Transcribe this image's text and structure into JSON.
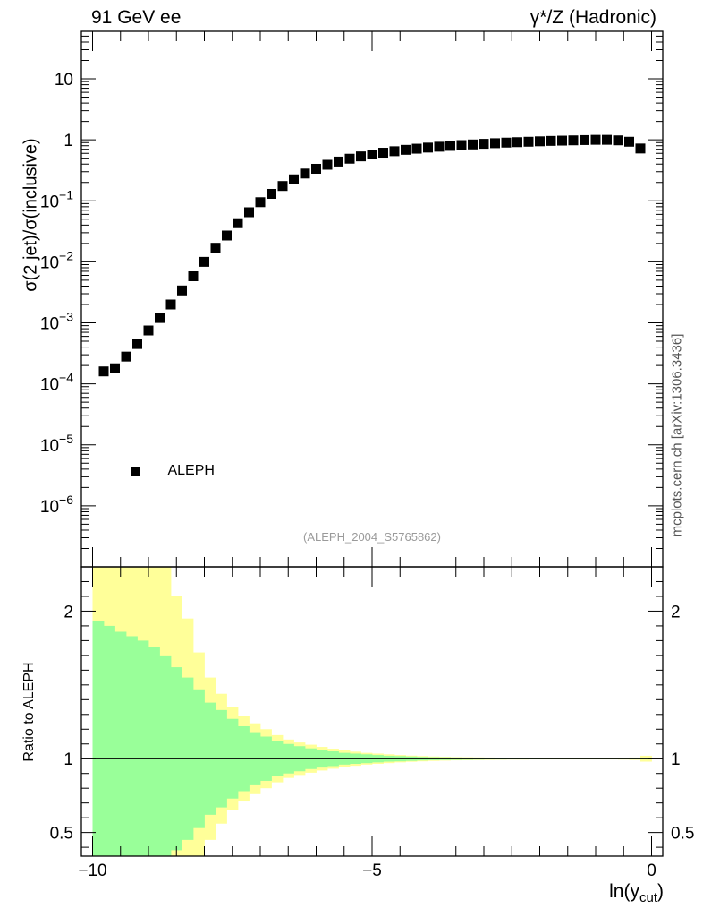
{
  "header": {
    "left_title": "91 GeV ee",
    "right_title": "γ*/Z (Hadronic)"
  },
  "side_note": "mcplots.cern.ch [arXiv:1306.3436]",
  "analysis_tag": "(ALEPH_2004_S5765862)",
  "colors": {
    "marker": "#000000",
    "band_inner": "#99ff99",
    "band_outer": "#ffff99",
    "axis": "#000000"
  },
  "chart_data": [
    {
      "type": "scatter",
      "id": "main",
      "ylabel": "σ(2 jet)/σ(inclusive)",
      "xlim": [
        -10.2,
        0.2
      ],
      "ylim": [
        1e-07,
        60
      ],
      "yscale": "log",
      "yticks": [
        {
          "value": 1e-06,
          "mant": "10",
          "exp": "−6"
        },
        {
          "value": 1e-05,
          "mant": "10",
          "exp": "−5"
        },
        {
          "value": 0.0001,
          "mant": "10",
          "exp": "−4"
        },
        {
          "value": 0.001,
          "mant": "10",
          "exp": "−3"
        },
        {
          "value": 0.01,
          "mant": "10",
          "exp": "−2"
        },
        {
          "value": 0.1,
          "mant": "10",
          "exp": "−1"
        },
        {
          "value": 1,
          "mant": "1",
          "exp": ""
        },
        {
          "value": 10,
          "mant": "10",
          "exp": ""
        }
      ],
      "legend": {
        "position": "lower-left",
        "entries": [
          "ALEPH"
        ]
      },
      "series": [
        {
          "name": "ALEPH",
          "x": [
            -9.8,
            -9.6,
            -9.4,
            -9.2,
            -9.0,
            -8.8,
            -8.6,
            -8.4,
            -8.2,
            -8.0,
            -7.8,
            -7.6,
            -7.4,
            -7.2,
            -7.0,
            -6.8,
            -6.6,
            -6.4,
            -6.2,
            -6.0,
            -5.8,
            -5.6,
            -5.4,
            -5.2,
            -5.0,
            -4.8,
            -4.6,
            -4.4,
            -4.2,
            -4.0,
            -3.8,
            -3.6,
            -3.4,
            -3.2,
            -3.0,
            -2.8,
            -2.6,
            -2.4,
            -2.2,
            -2.0,
            -1.8,
            -1.6,
            -1.4,
            -1.2,
            -1.0,
            -0.8,
            -0.6,
            -0.4,
            -0.2
          ],
          "y": [
            0.00016,
            0.00018,
            0.00028,
            0.00045,
            0.00075,
            0.0012,
            0.002,
            0.0034,
            0.0058,
            0.01,
            0.017,
            0.027,
            0.043,
            0.065,
            0.095,
            0.13,
            0.175,
            0.225,
            0.28,
            0.335,
            0.39,
            0.44,
            0.49,
            0.535,
            0.575,
            0.615,
            0.65,
            0.685,
            0.715,
            0.745,
            0.77,
            0.795,
            0.82,
            0.84,
            0.86,
            0.88,
            0.9,
            0.915,
            0.93,
            0.945,
            0.96,
            0.97,
            0.98,
            0.99,
            1.0,
            1.0,
            0.98,
            0.93,
            0.72
          ]
        }
      ]
    },
    {
      "type": "area",
      "id": "ratio",
      "ylabel": "Ratio to ALEPH",
      "xlabel": "ln(y",
      "xlabel_sub": "cut",
      "xlabel_end": ")",
      "xlim": [
        -10.2,
        0.2
      ],
      "ylim": [
        0.34,
        2.3
      ],
      "xticks": [
        {
          "value": -10,
          "label": "−10"
        },
        {
          "value": -5,
          "label": "−5"
        },
        {
          "value": 0,
          "label": "0"
        }
      ],
      "yticks": [
        {
          "value": 0.5,
          "label": "0.5"
        },
        {
          "value": 1,
          "label": "1"
        },
        {
          "value": 2,
          "label": "2"
        }
      ],
      "reference_line": 1,
      "bins": [
        -10.0,
        -9.8,
        -9.6,
        -9.4,
        -9.2,
        -9.0,
        -8.8,
        -8.6,
        -8.4,
        -8.2,
        -8.0,
        -7.8,
        -7.6,
        -7.4,
        -7.2,
        -7.0,
        -6.8,
        -6.6,
        -6.4,
        -6.2,
        -6.0,
        -5.8,
        -5.6,
        -5.4,
        -5.2,
        -5.0,
        -4.8,
        -4.6,
        -4.4,
        -4.2,
        -4.0,
        -3.8,
        -3.6,
        -3.4,
        -3.2,
        -3.0,
        -2.8,
        -2.6,
        -2.4,
        -2.2,
        -2.0,
        -1.8,
        -1.6,
        -1.4,
        -1.2,
        -1.0,
        -0.8,
        -0.6,
        -0.4,
        -0.2,
        0.0
      ],
      "inner_band": [
        0.93,
        0.9,
        0.86,
        0.83,
        0.8,
        0.76,
        0.7,
        0.62,
        0.55,
        0.47,
        0.38,
        0.33,
        0.27,
        0.22,
        0.18,
        0.15,
        0.12,
        0.1,
        0.085,
        0.07,
        0.06,
        0.05,
        0.04,
        0.035,
        0.03,
        0.025,
        0.02,
        0.018,
        0.015,
        0.012,
        0.01,
        0.009,
        0.008,
        0.007,
        0.006,
        0.005,
        0.005,
        0.004,
        0.004,
        0.004,
        0.003,
        0.003,
        0.003,
        0.003,
        0.003,
        0.003,
        0.003,
        0.003,
        0.004,
        0.005
      ],
      "outer_band": [
        1.5,
        1.5,
        1.5,
        1.5,
        1.5,
        1.5,
        1.3,
        1.1,
        0.95,
        0.72,
        0.55,
        0.44,
        0.35,
        0.29,
        0.24,
        0.2,
        0.16,
        0.13,
        0.11,
        0.095,
        0.08,
        0.068,
        0.057,
        0.048,
        0.04,
        0.035,
        0.03,
        0.025,
        0.021,
        0.018,
        0.015,
        0.013,
        0.011,
        0.01,
        0.009,
        0.008,
        0.007,
        0.006,
        0.006,
        0.005,
        0.005,
        0.005,
        0.005,
        0.005,
        0.005,
        0.005,
        0.005,
        0.006,
        0.008,
        0.02
      ]
    }
  ]
}
